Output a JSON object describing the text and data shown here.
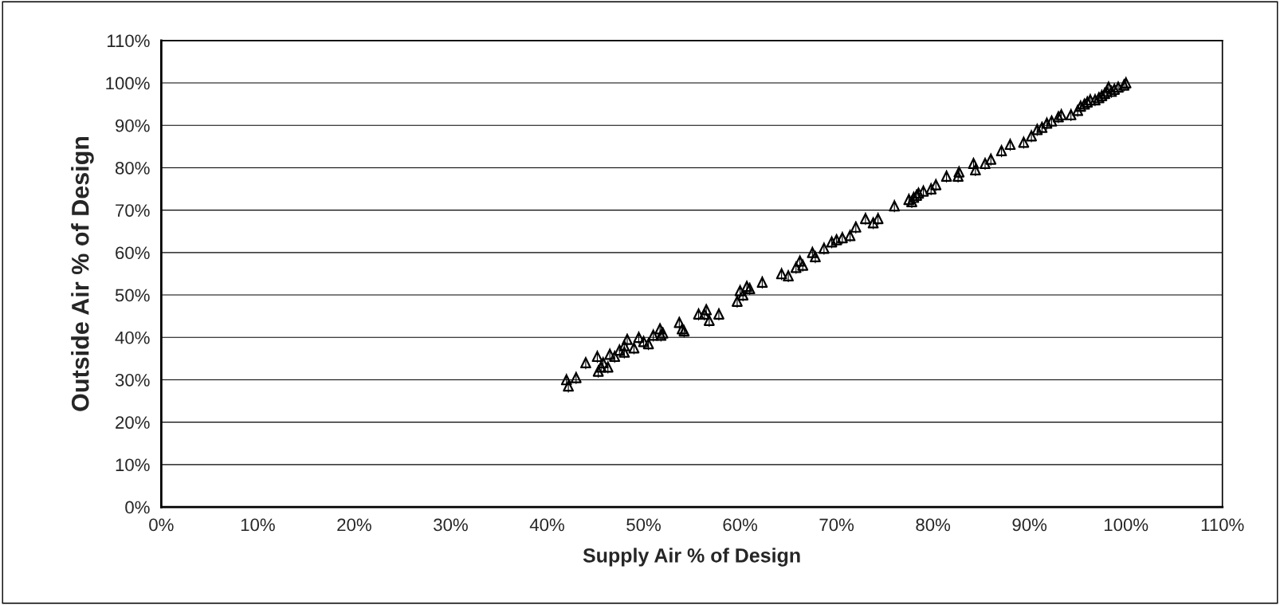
{
  "chart_data": {
    "type": "scatter",
    "xlabel": "Supply Air % of Design",
    "ylabel": "Outside Air % of Design",
    "x": [
      42,
      42.2,
      43,
      44,
      45.2,
      45.3,
      45.6,
      46.3,
      45.8,
      46.5,
      47,
      47.5,
      48,
      48.3,
      48,
      49,
      49.5,
      50,
      50.5,
      51,
      51.7,
      52,
      51.8,
      53.7,
      54,
      54.2,
      55.7,
      56.5,
      56.3,
      56.8,
      57.8,
      59.7,
      60,
      60.3,
      60.7,
      61,
      62.3,
      64.3,
      65,
      65.8,
      66.2,
      66.5,
      67.5,
      67.8,
      68.7,
      69.5,
      70,
      70.6,
      71.4,
      72,
      73,
      73.8,
      74.3,
      76,
      77.5,
      77.8,
      78,
      78.3,
      78.5,
      79,
      79.8,
      80.3,
      81.4,
      82.6,
      82.7,
      84.2,
      84.4,
      85.4,
      86,
      87.1,
      88,
      89.4,
      90.2,
      90.8,
      91.3,
      91.8,
      92.3,
      93,
      93.3,
      94.3,
      95,
      95.3,
      95.7,
      96,
      96.3,
      96.8,
      97.2,
      97.5,
      97.8,
      98,
      98.2,
      98.5,
      98.8,
      99.2,
      100,
      99.8
    ],
    "series": [
      {
        "color": "#000000",
        "values": [
          30,
          28.5,
          30.5,
          34,
          35.5,
          32,
          33,
          33,
          34,
          36,
          35.5,
          37,
          38,
          39.5,
          36.5,
          37.5,
          40,
          39,
          38.5,
          40.5,
          42,
          41,
          40.5,
          43.5,
          42,
          41.5,
          45.5,
          46.5,
          45.5,
          44,
          45.5,
          48.5,
          51,
          50,
          52,
          51.5,
          53,
          55,
          54.5,
          56.5,
          58,
          57,
          60,
          59,
          61,
          62.5,
          63,
          63.5,
          64,
          66,
          68,
          67,
          68,
          71,
          72.5,
          72,
          73,
          73.5,
          74,
          74.5,
          75,
          76,
          78,
          78,
          79,
          81,
          79.5,
          81,
          82,
          84,
          85.5,
          86,
          87.5,
          89,
          89.5,
          90.5,
          91,
          92,
          92.5,
          92.5,
          93.5,
          94.5,
          95,
          95.5,
          96,
          96,
          96.5,
          97,
          97.5,
          98,
          99,
          98,
          98.5,
          99,
          100,
          99.5
        ],
        "errors": [
          1.5,
          1.5,
          1.5,
          1.5,
          1.5,
          1.5,
          1.5,
          1.5,
          1.5,
          1.5,
          1.5,
          1.5,
          1.5,
          1.5,
          1.5,
          1.5,
          1.5,
          1.5,
          1.5,
          1.5,
          1.5,
          1.5,
          1.5,
          1.5,
          1.5,
          1.5,
          1.5,
          1.5,
          1.5,
          1.5,
          1.5,
          1.5,
          1.5,
          1.5,
          1.5,
          1.5,
          1.5,
          1.5,
          1.5,
          1.5,
          1.5,
          1.5,
          1.5,
          1.5,
          1.5,
          1.5,
          1.5,
          1.5,
          1.5,
          1.5,
          1.5,
          1.5,
          1.5,
          1.5,
          1.5,
          1.5,
          1.5,
          1.5,
          1.5,
          1.5,
          1.5,
          1.5,
          1.5,
          1.5,
          1.5,
          1.5,
          1.5,
          1.5,
          1.5,
          1.5,
          1.5,
          1.5,
          1.5,
          1.5,
          1.5,
          1.5,
          1.5,
          1.5,
          1.5,
          1.5,
          1.5,
          1.5,
          1.5,
          1.5,
          1.5,
          1.5,
          1.5,
          1.5,
          1.5,
          1.5,
          1.5,
          1.5,
          1.5,
          1.5,
          1.5,
          1.5
        ]
      }
    ],
    "marker": "triangle",
    "grid": "y",
    "xlim": [
      0,
      110
    ],
    "ylim": [
      0,
      110
    ],
    "xticks": [
      {
        "value": 0,
        "label": "0%"
      },
      {
        "value": 10,
        "label": "10%"
      },
      {
        "value": 20,
        "label": "20%"
      },
      {
        "value": 30,
        "label": "30%"
      },
      {
        "value": 40,
        "label": "40%"
      },
      {
        "value": 50,
        "label": "50%"
      },
      {
        "value": 60,
        "label": "60%"
      },
      {
        "value": 70,
        "label": "70%"
      },
      {
        "value": 80,
        "label": "80%"
      },
      {
        "value": 90,
        "label": "90%"
      },
      {
        "value": 100,
        "label": "100%"
      },
      {
        "value": 110,
        "label": "110%"
      }
    ],
    "yticks": [
      {
        "value": 0,
        "label": "0%"
      },
      {
        "value": 10,
        "label": "10%"
      },
      {
        "value": 20,
        "label": "20%"
      },
      {
        "value": 30,
        "label": "30%"
      },
      {
        "value": 40,
        "label": "40%"
      },
      {
        "value": 50,
        "label": "50%"
      },
      {
        "value": 60,
        "label": "60%"
      },
      {
        "value": 70,
        "label": "70%"
      },
      {
        "value": 80,
        "label": "80%"
      },
      {
        "value": 90,
        "label": "90%"
      },
      {
        "value": 100,
        "label": "100%"
      },
      {
        "value": 110,
        "label": "110%"
      }
    ]
  }
}
